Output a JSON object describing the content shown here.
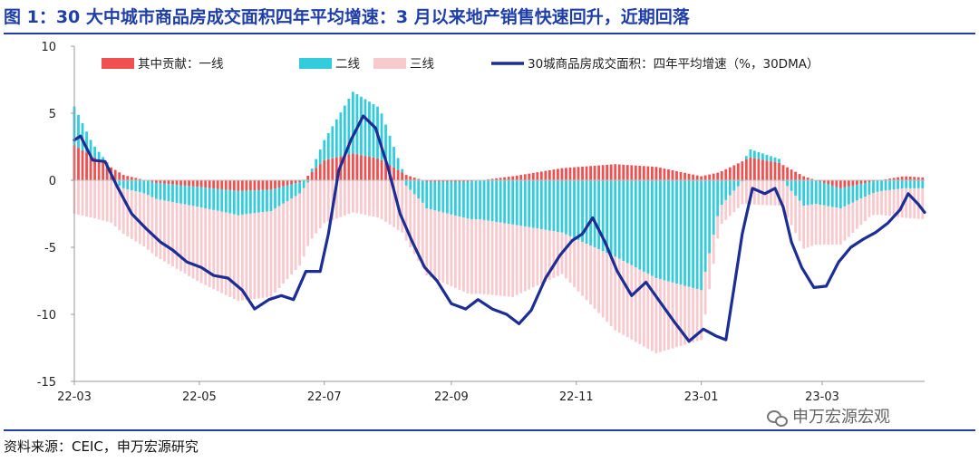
{
  "header": {
    "title": "图 1：30 大中城市商品房成交面积四年平均增速：3 月以来地产销售快速回升，近期回落"
  },
  "footer": {
    "source": "资料来源：CEIC，申万宏源研究",
    "watermark": "申万宏源宏观"
  },
  "chart_data": {
    "type": "bar",
    "subtype": "stacked bar with line overlay (daily)",
    "title": "",
    "xlabel": "",
    "ylabel": "",
    "ylim": [
      -15,
      10
    ],
    "yticks": [
      10,
      5,
      0,
      -5,
      -10,
      -15
    ],
    "xticks": [
      "22-03",
      "22-05",
      "22-07",
      "22-09",
      "22-11",
      "23-01",
      "23-03"
    ],
    "x_range": [
      "2022-03-01",
      "2023-04-20"
    ],
    "legend_position": "top",
    "grid": false,
    "legend": [
      {
        "name": "其中贡献：一线",
        "kind": "bar",
        "color": "#f0504f"
      },
      {
        "name": "二线",
        "kind": "bar",
        "color": "#33ccdd"
      },
      {
        "name": "三线",
        "kind": "bar",
        "color": "#f8c9cd"
      },
      {
        "name": "30城商品房成交面积：四年平均增速（%，30DMA）",
        "kind": "line",
        "color": "#1c2e96"
      }
    ],
    "series": [
      {
        "name": "其中贡献：一线",
        "color": "#f0504f",
        "points": [
          [
            "2022-03-01",
            2.6
          ],
          [
            "2022-03-10",
            1.8
          ],
          [
            "2022-03-25",
            0.4
          ],
          [
            "2022-04-10",
            -0.2
          ],
          [
            "2022-05-01",
            -0.5
          ],
          [
            "2022-05-20",
            -0.8
          ],
          [
            "2022-06-05",
            -0.7
          ],
          [
            "2022-06-20",
            -0.1
          ],
          [
            "2022-07-01",
            1.5
          ],
          [
            "2022-07-15",
            2.0
          ],
          [
            "2022-07-28",
            1.6
          ],
          [
            "2022-08-10",
            0.4
          ],
          [
            "2022-08-20",
            -0.1
          ],
          [
            "2022-09-10",
            -0.1
          ],
          [
            "2022-10-01",
            0.3
          ],
          [
            "2022-10-25",
            0.9
          ],
          [
            "2022-11-20",
            1.2
          ],
          [
            "2022-12-10",
            1.0
          ],
          [
            "2023-01-01",
            0.3
          ],
          [
            "2023-01-10",
            0.6
          ],
          [
            "2023-01-25",
            1.7
          ],
          [
            "2023-02-08",
            1.3
          ],
          [
            "2023-02-20",
            0.3
          ],
          [
            "2023-03-10",
            -0.6
          ],
          [
            "2023-03-25",
            -0.1
          ],
          [
            "2023-04-10",
            0.3
          ],
          [
            "2023-04-20",
            0.2
          ]
        ]
      },
      {
        "name": "二线",
        "color": "#33ccdd",
        "points": [
          [
            "2022-03-01",
            2.9
          ],
          [
            "2022-03-10",
            0.9
          ],
          [
            "2022-03-25",
            -0.6
          ],
          [
            "2022-04-10",
            -1.2
          ],
          [
            "2022-05-01",
            -1.5
          ],
          [
            "2022-05-20",
            -1.8
          ],
          [
            "2022-06-05",
            -1.6
          ],
          [
            "2022-06-20",
            -0.8
          ],
          [
            "2022-07-01",
            1.5
          ],
          [
            "2022-07-15",
            4.6
          ],
          [
            "2022-07-28",
            3.8
          ],
          [
            "2022-08-10",
            -0.4
          ],
          [
            "2022-08-20",
            -2.0
          ],
          [
            "2022-09-10",
            -2.8
          ],
          [
            "2022-10-01",
            -3.3
          ],
          [
            "2022-10-25",
            -3.9
          ],
          [
            "2022-11-20",
            -5.7
          ],
          [
            "2022-12-10",
            -7.3
          ],
          [
            "2023-01-01",
            -8.2
          ],
          [
            "2023-01-10",
            -2.0
          ],
          [
            "2023-01-25",
            0.6
          ],
          [
            "2023-02-08",
            0.3
          ],
          [
            "2023-02-20",
            -1.9
          ],
          [
            "2023-03-10",
            -1.5
          ],
          [
            "2023-03-25",
            -0.9
          ],
          [
            "2023-04-10",
            -0.6
          ],
          [
            "2023-04-20",
            -0.6
          ]
        ]
      },
      {
        "name": "三线",
        "color": "#f8c9cd",
        "points": [
          [
            "2022-03-01",
            -2.5
          ],
          [
            "2022-03-10",
            -2.8
          ],
          [
            "2022-03-25",
            -3.4
          ],
          [
            "2022-04-10",
            -4.3
          ],
          [
            "2022-05-01",
            -5.6
          ],
          [
            "2022-05-20",
            -6.4
          ],
          [
            "2022-06-05",
            -6.4
          ],
          [
            "2022-06-20",
            -5.3
          ],
          [
            "2022-07-01",
            -3.2
          ],
          [
            "2022-07-15",
            -2.4
          ],
          [
            "2022-07-28",
            -2.8
          ],
          [
            "2022-08-10",
            -4.1
          ],
          [
            "2022-08-20",
            -5.0
          ],
          [
            "2022-09-10",
            -5.6
          ],
          [
            "2022-10-01",
            -5.4
          ],
          [
            "2022-10-25",
            -3.1
          ],
          [
            "2022-11-20",
            -5.5
          ],
          [
            "2022-12-10",
            -5.6
          ],
          [
            "2023-01-01",
            -3.7
          ],
          [
            "2023-01-10",
            -1.4
          ],
          [
            "2023-01-25",
            -1.8
          ],
          [
            "2023-02-08",
            -1.9
          ],
          [
            "2023-02-20",
            -3.2
          ],
          [
            "2023-03-10",
            -2.7
          ],
          [
            "2023-03-25",
            -1.6
          ],
          [
            "2023-04-10",
            -2.2
          ],
          [
            "2023-04-20",
            -2.3
          ]
        ]
      },
      {
        "name": "30城商品房成交面积：四年平均增速（%，30DMA）",
        "color": "#1c2e96",
        "points": [
          [
            "2022-03-01",
            3.0
          ],
          [
            "2022-03-04",
            3.3
          ],
          [
            "2022-03-10",
            1.5
          ],
          [
            "2022-03-16",
            1.4
          ],
          [
            "2022-03-22",
            -0.5
          ],
          [
            "2022-03-29",
            -2.5
          ],
          [
            "2022-04-05",
            -3.6
          ],
          [
            "2022-04-12",
            -4.6
          ],
          [
            "2022-04-18",
            -5.2
          ],
          [
            "2022-04-25",
            -6.1
          ],
          [
            "2022-05-02",
            -6.5
          ],
          [
            "2022-05-08",
            -7.1
          ],
          [
            "2022-05-15",
            -7.3
          ],
          [
            "2022-05-22",
            -8.2
          ],
          [
            "2022-05-28",
            -9.6
          ],
          [
            "2022-06-04",
            -8.9
          ],
          [
            "2022-06-10",
            -8.6
          ],
          [
            "2022-06-16",
            -8.9
          ],
          [
            "2022-06-22",
            -6.8
          ],
          [
            "2022-06-29",
            -6.8
          ],
          [
            "2022-07-03",
            -4.0
          ],
          [
            "2022-07-08",
            0.7
          ],
          [
            "2022-07-14",
            3.0
          ],
          [
            "2022-07-20",
            4.8
          ],
          [
            "2022-07-26",
            3.9
          ],
          [
            "2022-08-01",
            1.0
          ],
          [
            "2022-08-07",
            -2.5
          ],
          [
            "2022-08-13",
            -4.6
          ],
          [
            "2022-08-19",
            -6.5
          ],
          [
            "2022-08-25",
            -7.5
          ],
          [
            "2022-09-01",
            -9.2
          ],
          [
            "2022-09-08",
            -9.6
          ],
          [
            "2022-09-14",
            -8.9
          ],
          [
            "2022-09-21",
            -9.6
          ],
          [
            "2022-09-28",
            -10.0
          ],
          [
            "2022-10-04",
            -10.7
          ],
          [
            "2022-10-10",
            -9.7
          ],
          [
            "2022-10-17",
            -7.3
          ],
          [
            "2022-10-24",
            -5.6
          ],
          [
            "2022-10-30",
            -4.5
          ],
          [
            "2022-11-04",
            -4.0
          ],
          [
            "2022-11-09",
            -2.8
          ],
          [
            "2022-11-15",
            -4.6
          ],
          [
            "2022-11-21",
            -6.8
          ],
          [
            "2022-11-28",
            -8.6
          ],
          [
            "2022-12-05",
            -7.6
          ],
          [
            "2022-12-12",
            -9.1
          ],
          [
            "2022-12-19",
            -10.6
          ],
          [
            "2022-12-26",
            -12.0
          ],
          [
            "2023-01-02",
            -11.1
          ],
          [
            "2023-01-08",
            -11.6
          ],
          [
            "2023-01-13",
            -11.9
          ],
          [
            "2023-01-17",
            -8.0
          ],
          [
            "2023-01-21",
            -4.0
          ],
          [
            "2023-01-26",
            -0.6
          ],
          [
            "2023-02-01",
            -1.0
          ],
          [
            "2023-02-06",
            -0.6
          ],
          [
            "2023-02-10",
            -2.0
          ],
          [
            "2023-02-14",
            -4.6
          ],
          [
            "2023-02-19",
            -6.5
          ],
          [
            "2023-02-25",
            -8.0
          ],
          [
            "2023-03-03",
            -7.9
          ],
          [
            "2023-03-09",
            -6.1
          ],
          [
            "2023-03-15",
            -5.0
          ],
          [
            "2023-03-21",
            -4.4
          ],
          [
            "2023-03-27",
            -3.9
          ],
          [
            "2023-04-02",
            -3.2
          ],
          [
            "2023-04-08",
            -2.2
          ],
          [
            "2023-04-12",
            -1.0
          ],
          [
            "2023-04-17",
            -1.8
          ],
          [
            "2023-04-20",
            -2.4
          ]
        ]
      }
    ]
  }
}
